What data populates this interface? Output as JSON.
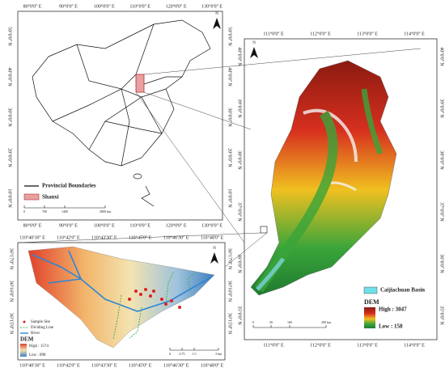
{
  "china_map": {
    "lon_labels": [
      "80°0'0'' E",
      "90°0'0'' E",
      "100°0'0'' E",
      "110°0'0'' E",
      "120°0'0'' E",
      "130°0'0'' E"
    ],
    "lat_labels": [
      "50°0'0'' N",
      "40°0'0'' N",
      "30°0'0'' N",
      "20°0'0'' N",
      "10°0'0'' N"
    ],
    "north": "N",
    "legend": {
      "boundaries": "Provincial Boundaries",
      "province": "Shanxi"
    },
    "scale": [
      "0",
      "700",
      "1400",
      "2800 km"
    ]
  },
  "shanxi_map": {
    "lon_labels": [
      "111°0'0'' E",
      "112°0'0'' E",
      "113°0'0'' E",
      "114°0'0'' E"
    ],
    "lat_labels": [
      "40°0'0'' N",
      "39°0'0'' N",
      "38°0'0'' N",
      "37°0'0'' N",
      "36°0'0'' N",
      "35°0'0'' N"
    ],
    "north": "N",
    "legend": {
      "basin": "Caijiachuan Basin",
      "dem": "DEM",
      "high": "High : 3047",
      "low": "Low : 158"
    },
    "scale": [
      "0",
      "50",
      "100",
      "200 km"
    ]
  },
  "basin_map": {
    "lon_labels": [
      "110°40'30'' E",
      "110°42'0'' E",
      "110°43'30'' E",
      "110°45'0'' E",
      "110°46'30'' E",
      "110°48'0'' E"
    ],
    "lat_labels": [
      "36°17'0'' N",
      "36°16'0'' N",
      "36°15'0'' N"
    ],
    "north": "N",
    "legend": {
      "site": "Sample Site",
      "divide": "Dividing Line",
      "river": "River",
      "dem": "DEM",
      "high": "High : 1574",
      "low": "Low : 898"
    },
    "scale": [
      "0",
      "0.75",
      "1.5",
      "3 km"
    ]
  }
}
